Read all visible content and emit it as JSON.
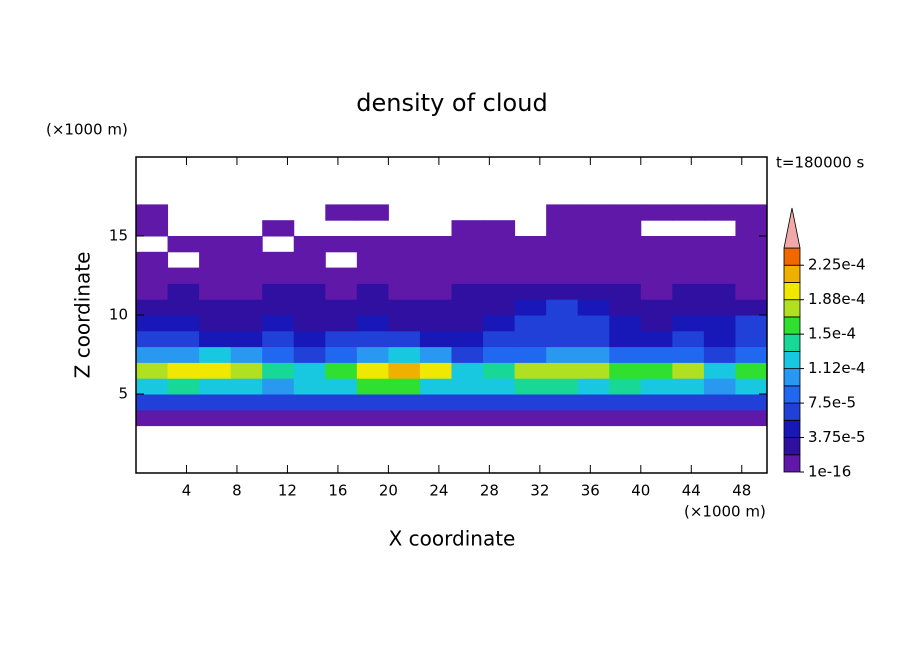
{
  "chart_data": {
    "type": "contour",
    "title": "density of cloud",
    "x_label": "X coordinate",
    "y_label": "Z coordinate",
    "x_unit": "(×1000 m)",
    "y_unit": "(×1000 m)",
    "time_label": "t=180000 s",
    "xlim": [
      0,
      50
    ],
    "ylim": [
      0,
      20
    ],
    "xticks": [
      4,
      8,
      12,
      16,
      20,
      24,
      28,
      32,
      36,
      40,
      44,
      48
    ],
    "yticks": [
      5,
      10,
      15
    ],
    "x": [
      1.25,
      3.75,
      6.25,
      8.75,
      11.25,
      13.75,
      16.25,
      18.75,
      21.25,
      23.75,
      26.25,
      28.75,
      31.25,
      33.75,
      36.25,
      38.75,
      41.25,
      43.75,
      46.25,
      48.75
    ],
    "z": [
      3.5,
      4.5,
      5.5,
      6.5,
      7.5,
      8.5,
      9.5,
      10.5,
      11.5,
      12.5,
      13.5,
      14.5,
      15.5,
      16.5
    ],
    "values": [
      [
        1e-05,
        1e-05,
        1e-05,
        1e-05,
        1e-05,
        1e-05,
        1e-05,
        1e-05,
        1e-05,
        1e-05,
        1e-05,
        1e-05,
        1e-05,
        1e-05,
        1e-05,
        1e-05,
        1e-05,
        1e-05,
        1e-05,
        1e-05
      ],
      [
        7e-05,
        7e-05,
        6e-05,
        7e-05,
        7e-05,
        6e-05,
        7e-05,
        6e-05,
        7e-05,
        7e-05,
        6e-05,
        7e-05,
        7e-05,
        6e-05,
        7e-05,
        7e-05,
        6e-05,
        7e-05,
        6e-05,
        7e-05
      ],
      [
        0.00013,
        0.00014,
        0.00013,
        0.00012,
        0.00011,
        0.00012,
        0.00013,
        0.00015,
        0.00015,
        0.00012,
        0.00012,
        0.00013,
        0.00014,
        0.00014,
        0.00013,
        0.00014,
        0.00013,
        0.00012,
        0.00011,
        0.00013
      ],
      [
        0.00017,
        0.00019,
        0.0002,
        0.00018,
        0.00014,
        0.00012,
        0.00015,
        0.00019,
        0.00021,
        0.00019,
        0.00013,
        0.00014,
        0.00017,
        0.00018,
        0.00017,
        0.00015,
        0.00016,
        0.00017,
        0.00013,
        0.00016
      ],
      [
        0.0001,
        0.00011,
        0.00012,
        0.0001,
        8e-05,
        7e-05,
        8e-05,
        0.00011,
        0.00013,
        0.0001,
        7e-05,
        8e-05,
        9e-05,
        0.00011,
        0.0001,
        8e-05,
        8e-05,
        9e-05,
        7e-05,
        9e-05
      ],
      [
        6e-05,
        6e-05,
        5e-05,
        5e-05,
        6e-05,
        5e-05,
        6e-05,
        6e-05,
        6e-05,
        5e-05,
        5e-05,
        6e-05,
        6e-05,
        7e-05,
        6e-05,
        5e-05,
        5e-05,
        6e-05,
        5e-05,
        6e-05
      ],
      [
        5e-05,
        4e-05,
        3.5e-05,
        3e-05,
        4e-05,
        3e-05,
        3.5e-05,
        4e-05,
        3e-05,
        3e-05,
        3.5e-05,
        4e-05,
        6e-05,
        7e-05,
        6e-05,
        4e-05,
        3.5e-05,
        4e-05,
        5e-05,
        6e-05
      ],
      [
        3e-05,
        2.5e-05,
        2e-05,
        2e-05,
        2.5e-05,
        2e-05,
        2e-05,
        2.5e-05,
        2e-05,
        2e-05,
        2.5e-05,
        3e-05,
        4.5e-05,
        6e-05,
        4e-05,
        3e-05,
        2.5e-05,
        2.5e-05,
        3e-05,
        3e-05
      ],
      [
        1.5e-05,
        2e-05,
        1.5e-05,
        1.5e-05,
        2e-05,
        2e-05,
        1.5e-05,
        2e-05,
        1.5e-05,
        1.5e-05,
        2e-05,
        2e-05,
        2.5e-05,
        3e-05,
        2.5e-05,
        2e-05,
        1.5e-05,
        2e-05,
        2e-05,
        1.5e-05
      ],
      [
        1e-05,
        1e-05,
        1e-05,
        1e-05,
        1e-05,
        1e-05,
        1e-05,
        1e-05,
        1e-05,
        1e-05,
        1e-05,
        1e-05,
        1e-05,
        1e-05,
        1e-05,
        1e-05,
        1e-05,
        1e-05,
        1e-05,
        1e-05
      ],
      [
        1e-05,
        null,
        1e-05,
        1e-05,
        1e-05,
        1e-05,
        null,
        1e-05,
        1e-05,
        1e-05,
        1e-05,
        1e-05,
        1e-05,
        1e-05,
        1e-05,
        1e-05,
        1e-05,
        1e-05,
        1e-05,
        1e-05
      ],
      [
        null,
        1e-05,
        1e-05,
        1e-05,
        null,
        1e-05,
        1e-05,
        1e-05,
        1e-05,
        1e-05,
        1e-05,
        1e-05,
        1e-05,
        1e-05,
        1e-05,
        1e-05,
        1e-05,
        1e-05,
        1e-05,
        1e-05
      ],
      [
        5e-06,
        null,
        null,
        null,
        5e-06,
        null,
        null,
        null,
        null,
        null,
        5e-06,
        5e-06,
        null,
        5e-06,
        5e-06,
        5e-06,
        null,
        null,
        null,
        5e-06
      ],
      [
        5e-06,
        null,
        null,
        null,
        null,
        null,
        5e-06,
        5e-06,
        null,
        null,
        null,
        null,
        null,
        5e-06,
        5e-06,
        5e-06,
        5e-06,
        5e-06,
        5e-06,
        5e-06
      ]
    ],
    "levels": [
      1e-16,
      1.875e-05,
      3.75e-05,
      5.625e-05,
      7.5e-05,
      9.375e-05,
      0.0001125,
      0.00013125,
      0.00015,
      0.00016875,
      0.0001875,
      0.00020625,
      0.000225,
      0.00024375
    ],
    "colors": [
      "#6018a8",
      "#3010a0",
      "#1818b8",
      "#2040d8",
      "#2068f0",
      "#2898f0",
      "#18c8e0",
      "#18d898",
      "#30e030",
      "#b0e020",
      "#f0e800",
      "#f0b000",
      "#f06800",
      "#f02818"
    ],
    "extend_color": "#f0a8a8",
    "colorbar_ticks": [
      {
        "value": 1e-16,
        "label": "1e-16"
      },
      {
        "value": 3.75e-05,
        "label": "3.75e-5"
      },
      {
        "value": 7.5e-05,
        "label": "7.5e-5"
      },
      {
        "value": 0.0001125,
        "label": "1.12e-4"
      },
      {
        "value": 0.00015,
        "label": "1.5e-4"
      },
      {
        "value": 0.0001875,
        "label": "1.88e-4"
      },
      {
        "value": 0.000225,
        "label": "2.25e-4"
      }
    ]
  }
}
